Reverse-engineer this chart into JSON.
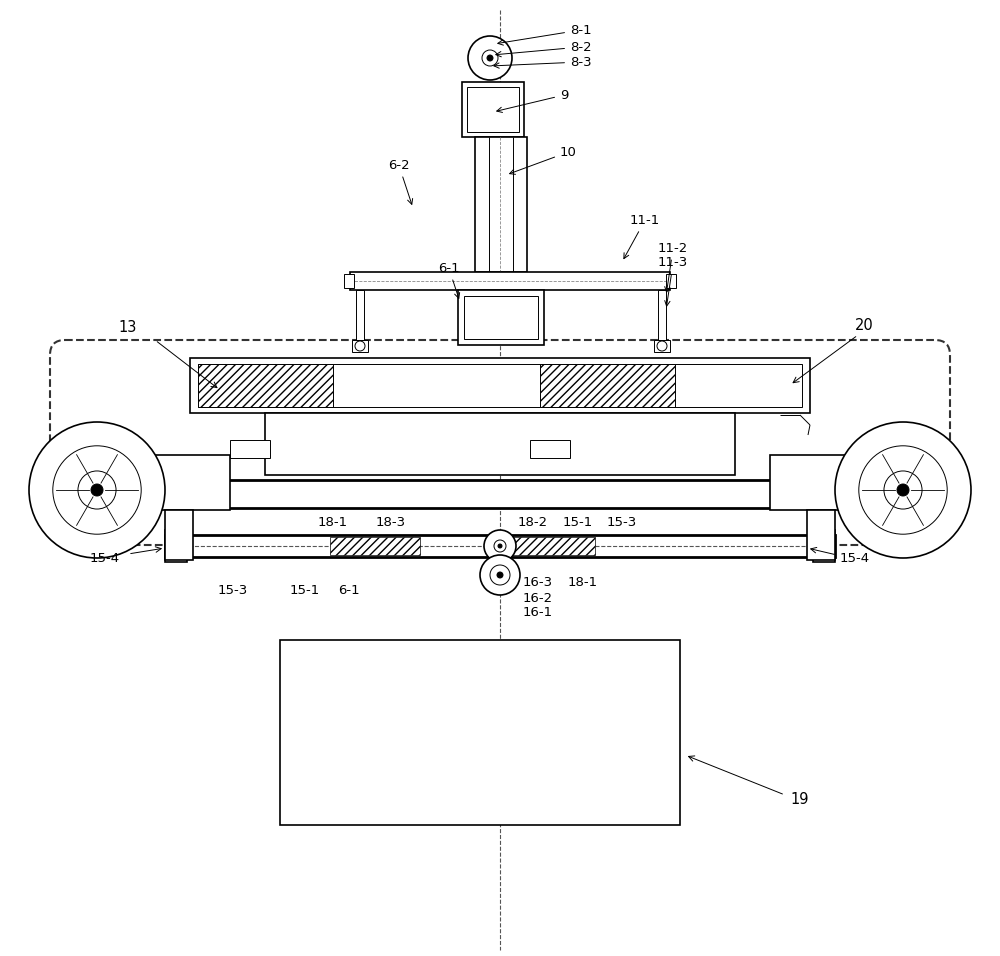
{
  "bg_color": "#ffffff",
  "lw_thin": 0.7,
  "lw_med": 1.2,
  "lw_thick": 2.0,
  "fig_width": 10.0,
  "fig_height": 9.56
}
